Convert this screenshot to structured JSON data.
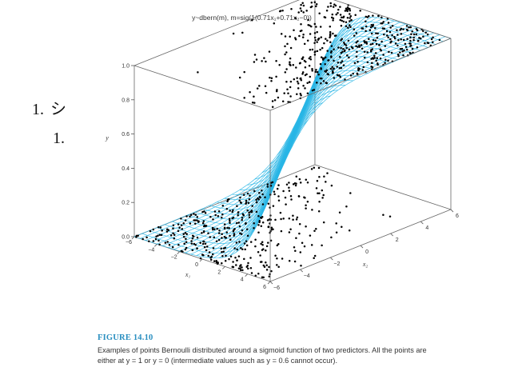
{
  "figure": {
    "title": "y~dbern(m), m=sig(1(0.71x₁+0.71x₂−0))",
    "label": "FIGURE 14.10",
    "caption": "Examples of points Bernoulli distributed around a sigmoid function of two predictors. All the points are either at y = 1 or y = 0 (intermediate values such as y = 0.6 cannot occur)."
  },
  "overlay_list": [
    {
      "number": "1.",
      "text": "シ"
    },
    {
      "number": "1.",
      "text": ""
    }
  ],
  "chart_data": {
    "type": "scatter",
    "title": "y~dbern(m), m=sig(1(0.71x₁+0.71x₂−0))",
    "xlabel": "x₁",
    "ylabel": "y",
    "zlabel": "x₂",
    "x1_ticks": [
      "−6",
      "−4",
      "−2",
      "0",
      "2",
      "4",
      "6"
    ],
    "x2_ticks": [
      "−6",
      "−4",
      "−2",
      "0",
      "2",
      "4",
      "6"
    ],
    "y_ticks": [
      "0.0",
      "0.2",
      "0.4",
      "0.6",
      "0.8",
      "1.0"
    ],
    "x1_range": [
      -6,
      6
    ],
    "x2_range": [
      -6,
      6
    ],
    "y_range": [
      0,
      1
    ],
    "surface": {
      "function": "sigmoid",
      "gain": 1,
      "w1": 0.71,
      "w2": 0.71,
      "threshold": 0,
      "color": "#29b6e6"
    },
    "point_color": "#000000",
    "grid": false
  }
}
